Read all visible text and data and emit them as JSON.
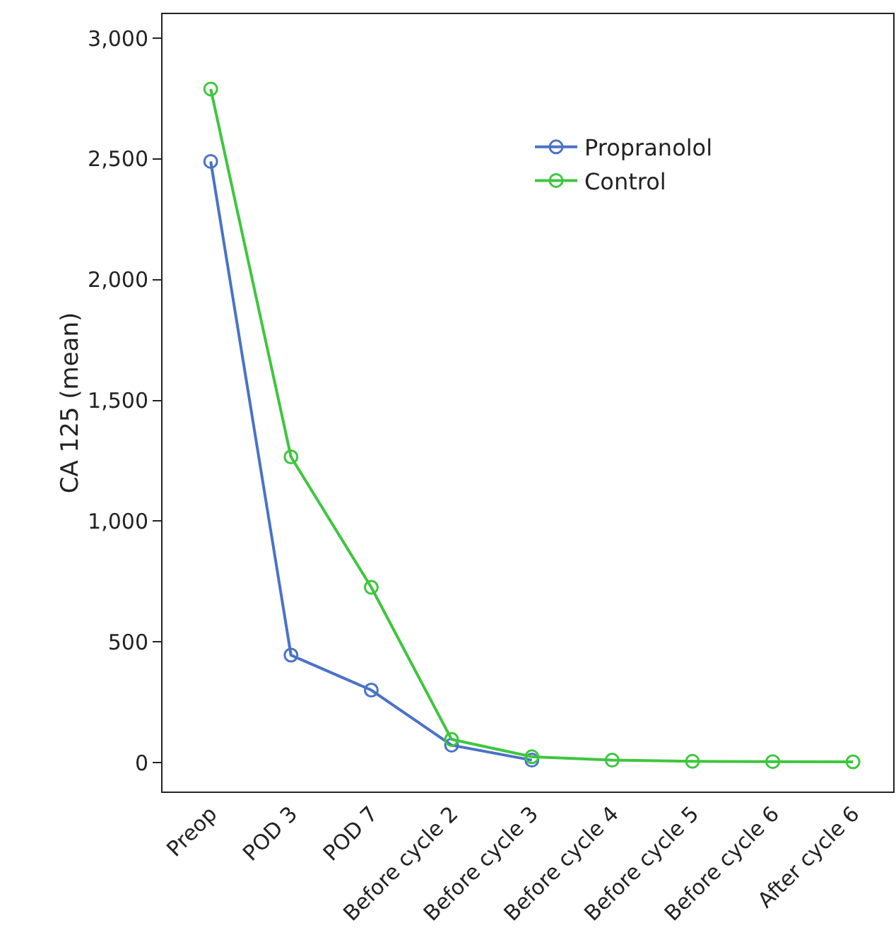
{
  "chart_data": {
    "type": "line",
    "ylabel": "CA 125 (mean)",
    "categories": [
      "Preop",
      "POD 3",
      "POD 7",
      "Before cycle 2",
      "Before cycle 3",
      "Before cycle 4",
      "Before cycle 5",
      "Before cycle 6",
      "After cycle 6"
    ],
    "series": [
      {
        "name": "Propranolol",
        "color": "#4a72c8",
        "values": [
          2490,
          445,
          300,
          72,
          10,
          null,
          null,
          null,
          null
        ]
      },
      {
        "name": "Control",
        "color": "#3ec63e",
        "values": [
          2790,
          1266,
          726,
          96,
          24,
          10,
          5,
          4,
          3
        ]
      }
    ],
    "ylim": [
      -120,
      3100
    ],
    "yticks": [
      0,
      {
        "value": 500,
        "label": "500"
      },
      {
        "value": 1000,
        "label": "1,000"
      },
      {
        "value": 1500,
        "label": "1,500"
      },
      {
        "value": 2000,
        "label": "2,000"
      },
      {
        "value": 2500,
        "label": "2,500"
      },
      {
        "value": 3000,
        "label": "3,000"
      }
    ],
    "grid": false,
    "legend": "top right",
    "marker": "circle",
    "line_style": "solid"
  }
}
